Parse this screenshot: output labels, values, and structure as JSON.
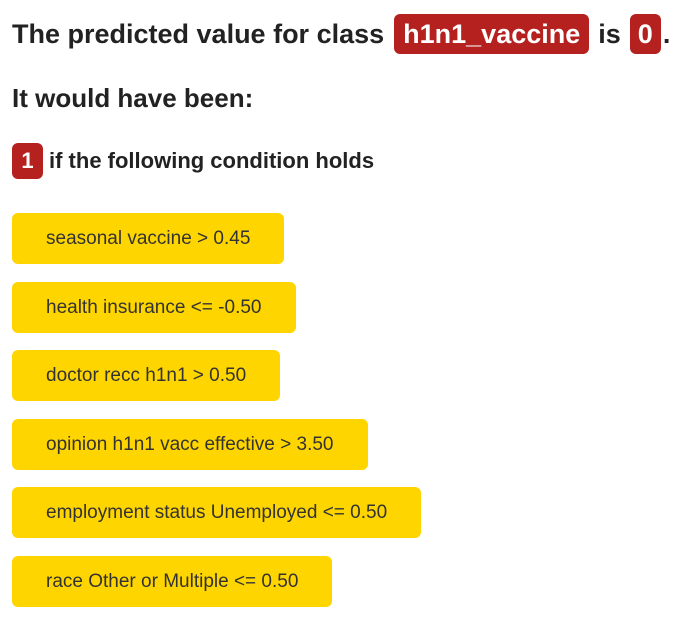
{
  "headline": {
    "prefix": "The predicted value for class",
    "class_name": "h1n1_vaccine",
    "middle": "is",
    "predicted_value": "0",
    "suffix": "."
  },
  "subheading": "It would have been:",
  "condition": {
    "alternative_value": "1",
    "text": "if the following condition holds"
  },
  "rules": [
    "seasonal vaccine > 0.45",
    "health insurance <= -0.50",
    "doctor recc h1n1 > 0.50",
    "opinion h1n1 vacc effective > 3.50",
    "employment status Unemployed <= 0.50",
    "race Other or Multiple <= 0.50"
  ],
  "colors": {
    "badge": "#b5211f",
    "rule_background": "#ffd500"
  }
}
